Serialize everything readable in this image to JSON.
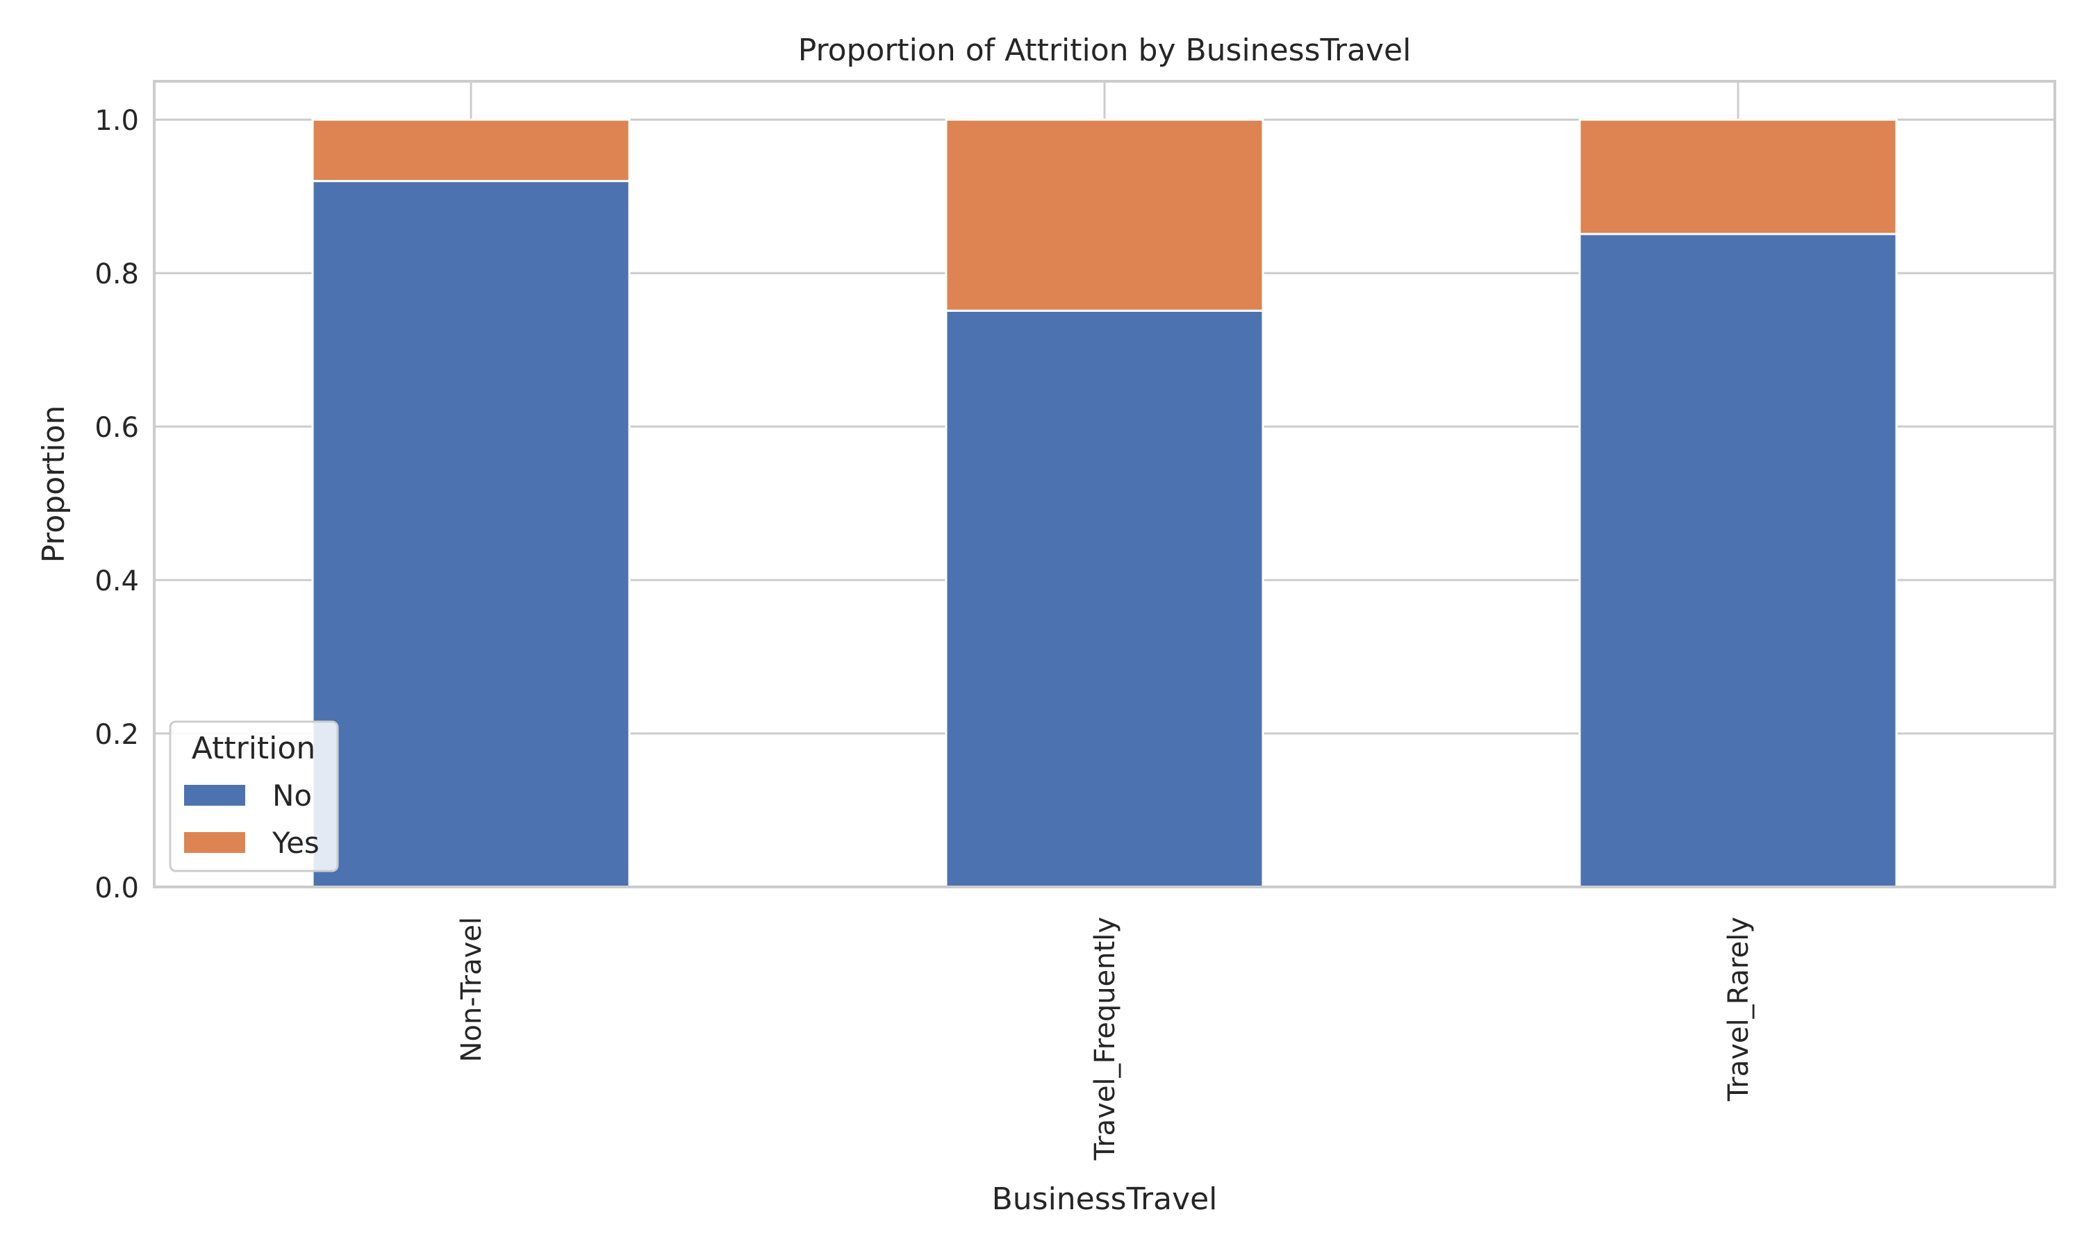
{
  "chart_data": {
    "type": "bar",
    "stacked": true,
    "title": "Proportion of Attrition by BusinessTravel",
    "xlabel": "BusinessTravel",
    "ylabel": "Proportion",
    "categories": [
      "Non-Travel",
      "Travel_Frequently",
      "Travel_Rarely"
    ],
    "series": [
      {
        "name": "No",
        "color": "#4c72b0",
        "values": [
          0.92,
          0.751,
          0.851
        ]
      },
      {
        "name": "Yes",
        "color": "#dd8452",
        "values": [
          0.08,
          0.249,
          0.149
        ]
      }
    ],
    "ylim": [
      0,
      1.05
    ],
    "yticks": [
      "0.0",
      "0.2",
      "0.4",
      "0.6",
      "0.8",
      "1.0"
    ],
    "grid": true,
    "legend": {
      "title": "Attrition",
      "position": "lower-left"
    },
    "colors": {
      "grid": "#cccccc",
      "axis": "#cccccc",
      "text": "#262626"
    }
  }
}
